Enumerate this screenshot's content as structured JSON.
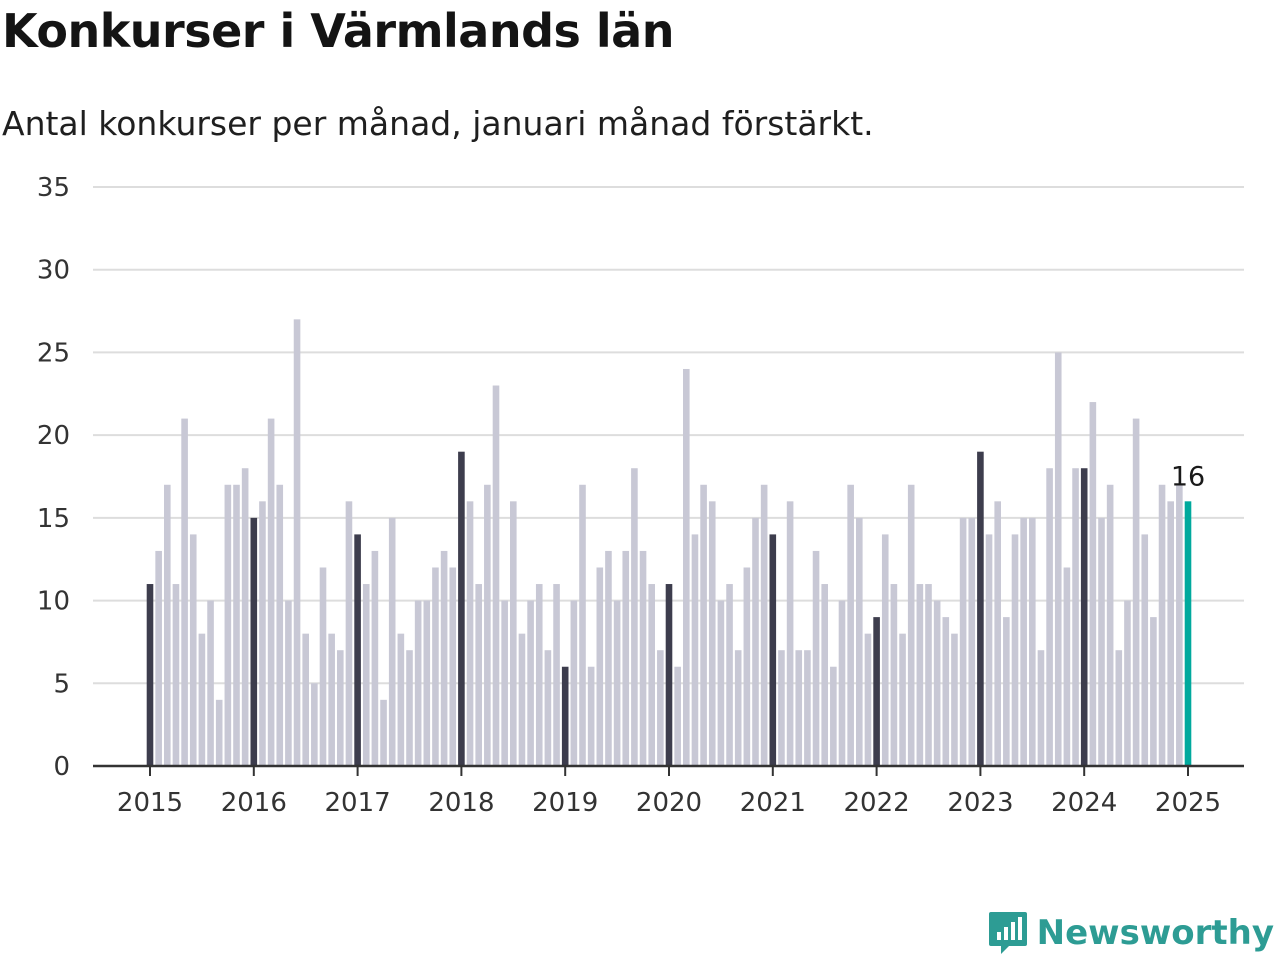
{
  "header": {
    "title": "Konkurser i Värmlands län",
    "subtitle": "Antal konkurser per månad, januari månad förstärkt."
  },
  "brand": {
    "name": "Newsworthy",
    "icon": "newsworthy-chart-bubble-icon",
    "color": "#2d9c94"
  },
  "colors": {
    "january": "#3d3d4d",
    "other": "#c8c8d5",
    "latest": "#00a99d",
    "grid": "#dddddd",
    "axis": "#333333"
  },
  "chart_data": {
    "type": "bar",
    "title": "Konkurser i Värmlands län",
    "subtitle": "Antal konkurser per månad, januari månad förstärkt.",
    "xlabel": "",
    "ylabel": "",
    "ylim": [
      0,
      35
    ],
    "yticks": [
      0,
      5,
      10,
      15,
      20,
      25,
      30,
      35
    ],
    "xticks": [
      "2015",
      "2016",
      "2017",
      "2018",
      "2019",
      "2020",
      "2021",
      "2022",
      "2023",
      "2024",
      "2025"
    ],
    "start": "2015-01",
    "grid": true,
    "highlight": "January bars emphasized; latest month highlighted",
    "annotation": {
      "label": "16",
      "month": "2025-01"
    },
    "values": [
      11,
      13,
      17,
      11,
      21,
      14,
      8,
      10,
      4,
      17,
      17,
      18,
      15,
      16,
      21,
      17,
      10,
      27,
      8,
      5,
      12,
      8,
      7,
      16,
      14,
      11,
      13,
      4,
      15,
      8,
      7,
      10,
      10,
      12,
      13,
      12,
      19,
      16,
      11,
      17,
      23,
      10,
      16,
      8,
      10,
      11,
      7,
      11,
      6,
      10,
      17,
      6,
      12,
      13,
      10,
      13,
      18,
      13,
      11,
      7,
      11,
      6,
      24,
      14,
      17,
      16,
      10,
      11,
      7,
      12,
      15,
      17,
      14,
      7,
      16,
      7,
      7,
      13,
      11,
      6,
      10,
      17,
      15,
      8,
      9,
      14,
      11,
      8,
      17,
      11,
      11,
      10,
      9,
      8,
      15,
      15,
      19,
      14,
      16,
      9,
      14,
      15,
      15,
      7,
      18,
      25,
      12,
      18,
      18,
      22,
      15,
      17,
      7,
      10,
      21,
      14,
      9,
      17,
      16,
      17,
      16
    ]
  }
}
